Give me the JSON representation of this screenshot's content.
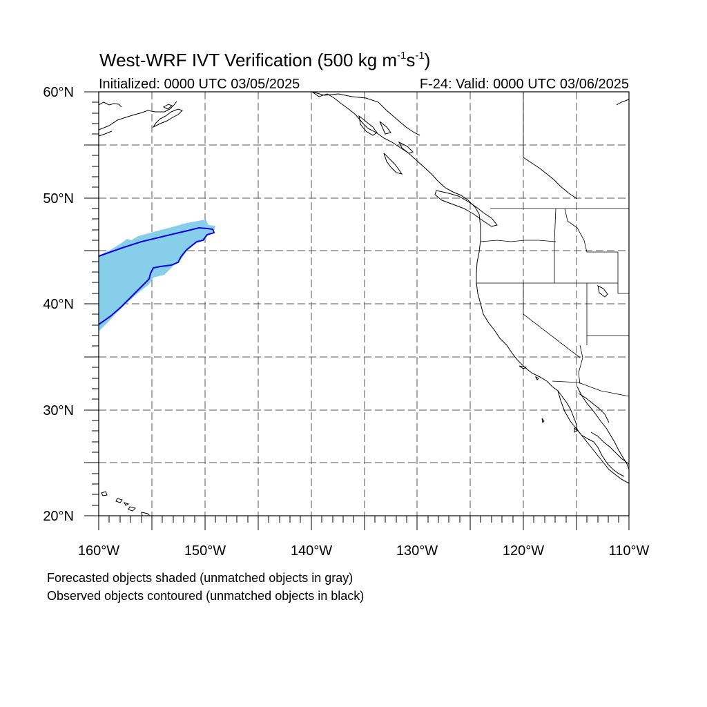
{
  "title": {
    "main": "West-WRF IVT Verification (500 kg m",
    "sup1": "-1",
    "mid": "s",
    "sup2": "-1",
    "end": ")"
  },
  "initialized": "Initialized: 0000 UTC 03/05/2025",
  "valid": "F-24: Valid: 0000 UTC 03/06/2025",
  "map": {
    "extent": {
      "lon_min": -160,
      "lon_max": -110,
      "lat_min": 20,
      "lat_max": 60
    },
    "lat_labels": [
      "60°N",
      "50°N",
      "40°N",
      "30°N",
      "20°N"
    ],
    "lon_labels": [
      "160°W",
      "150°W",
      "140°W",
      "130°W",
      "120°W",
      "110°W"
    ],
    "gridlines": "dashed every 5 degrees",
    "forecast_fill_color": "#87ceeb",
    "observed_contour_color": "#0000e0"
  },
  "notes": {
    "line1": "Forecasted objects shaded (unmatched objects in gray)",
    "line2": "Observed objects contoured (unmatched objects in black)"
  }
}
